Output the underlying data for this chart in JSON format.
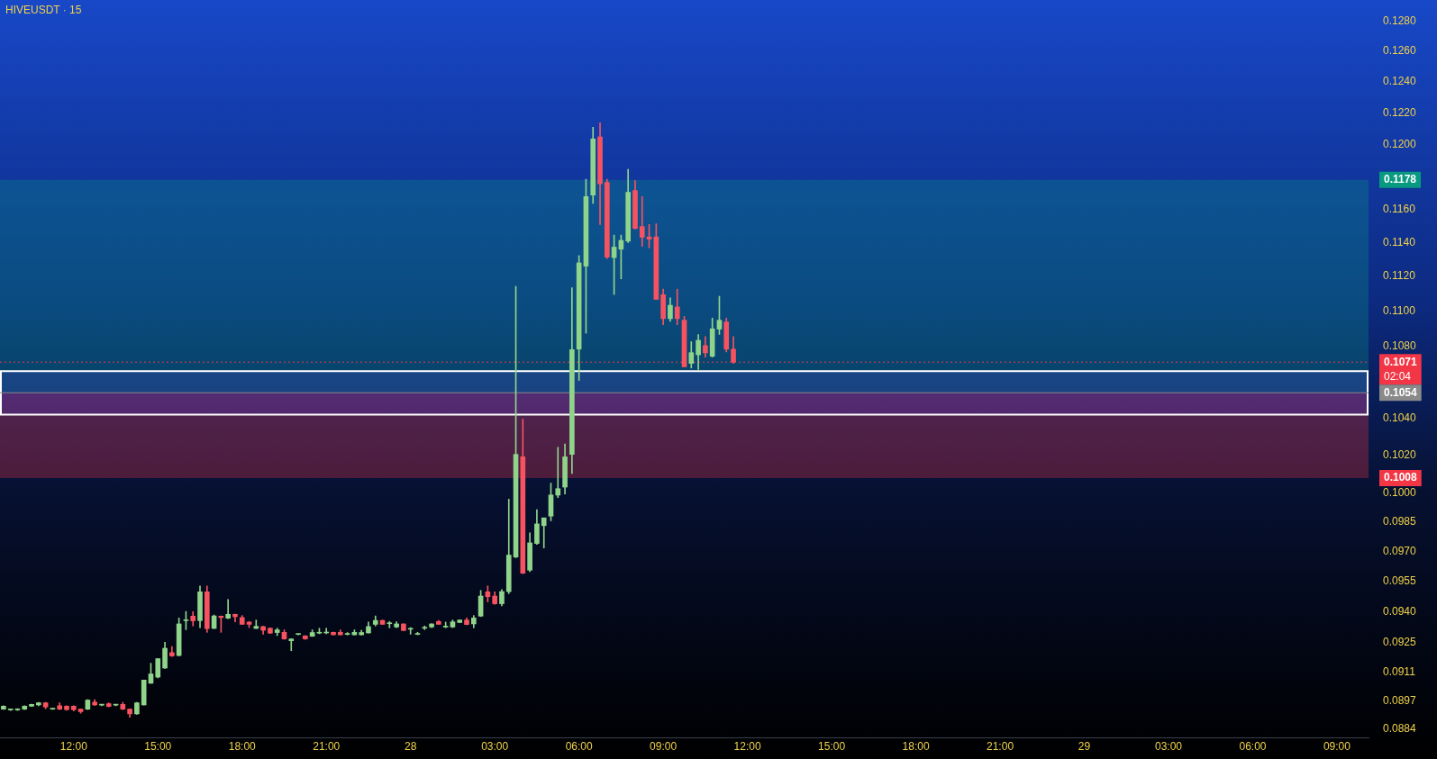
{
  "chart_data": {
    "type": "candlestick",
    "title": "HIVEUSDT · 15",
    "categories": [
      null,
      null,
      null,
      null,
      null,
      null,
      null,
      null,
      null,
      null,
      "12:00",
      null,
      null,
      null,
      null,
      null,
      null,
      null,
      null,
      null,
      null,
      null,
      "15:00",
      null,
      null,
      null,
      null,
      null,
      null,
      null,
      null,
      null,
      null,
      null,
      "18:00",
      null,
      null,
      null,
      null,
      null,
      null,
      null,
      null,
      null,
      null,
      null,
      "21:00",
      null,
      null,
      null,
      null,
      null,
      null,
      null,
      null,
      null,
      null,
      null,
      "28",
      null,
      null,
      null,
      null,
      null,
      null,
      null,
      null,
      null,
      null,
      null,
      "03:00",
      null,
      null,
      null,
      null,
      null,
      null,
      null,
      null,
      null,
      null,
      null,
      "06:00",
      null,
      null,
      null,
      null,
      null,
      null,
      null,
      null,
      null,
      null,
      null,
      "09:00",
      null,
      null,
      null,
      null,
      null,
      null,
      null,
      null,
      null,
      null,
      null,
      "12:00",
      null,
      null,
      null,
      null,
      null,
      null,
      null,
      null,
      null,
      null,
      null,
      "15:00",
      null,
      null,
      null,
      null,
      null,
      null,
      null,
      null,
      null,
      null,
      null,
      "18:00",
      null,
      null,
      null,
      null,
      null,
      null,
      null,
      null,
      null,
      null,
      null,
      "21:00",
      null,
      null,
      null,
      null,
      null,
      null,
      null,
      null,
      null,
      null,
      null,
      "29",
      null,
      null,
      null,
      null,
      null,
      null,
      null,
      null,
      null,
      null,
      null,
      "03:00",
      null,
      null,
      null,
      null,
      null,
      null,
      null,
      null,
      null,
      null,
      null,
      "06:00",
      null,
      null,
      null,
      null,
      null,
      null,
      null,
      null,
      null,
      null,
      null,
      "09:00",
      null,
      null,
      null,
      null
    ],
    "ohlc": [
      [
        0.08934,
        0.0895,
        0.08933,
        0.08948
      ],
      [
        0.08931,
        0.08935,
        0.08928,
        0.08932
      ],
      [
        0.08931,
        0.08936,
        0.08928,
        0.08934
      ],
      [
        0.08934,
        0.0895,
        0.08932,
        0.08948
      ],
      [
        0.08948,
        0.08958,
        0.08947,
        0.08957
      ],
      [
        0.08954,
        0.08966,
        0.0895,
        0.08964
      ],
      [
        0.08964,
        0.08966,
        0.08936,
        0.08944
      ],
      [
        0.08934,
        0.08936,
        0.08933,
        0.08935
      ],
      [
        0.0895,
        0.08964,
        0.08932,
        0.08934
      ],
      [
        0.08948,
        0.0895,
        0.08929,
        0.08932
      ],
      [
        0.08948,
        0.0895,
        0.08926,
        0.08932
      ],
      [
        0.08934,
        0.08935,
        0.08915,
        0.08922
      ],
      [
        0.08934,
        0.08979,
        0.08932,
        0.08977
      ],
      [
        0.08967,
        0.08979,
        0.08951,
        0.08954
      ],
      [
        0.08953,
        0.08957,
        0.0895,
        0.08955
      ],
      [
        0.0896,
        0.08964,
        0.08945,
        0.08947
      ],
      [
        0.08953,
        0.08957,
        0.0895,
        0.08955
      ],
      [
        0.08957,
        0.08966,
        0.08932,
        0.08934
      ],
      [
        0.08934,
        0.08935,
        0.08896,
        0.08912
      ],
      [
        0.08912,
        0.08966,
        0.0891,
        0.08964
      ],
      [
        0.08954,
        0.09071,
        0.08953,
        0.09071
      ],
      [
        0.09056,
        0.09151,
        0.09055,
        0.091
      ],
      [
        0.09085,
        0.09173,
        0.09081,
        0.09173
      ],
      [
        0.09128,
        0.09252,
        0.09126,
        0.09223
      ],
      [
        0.09202,
        0.09231,
        0.09183,
        0.09186
      ],
      [
        0.09188,
        0.0937,
        0.09186,
        0.09341
      ],
      [
        0.09357,
        0.09402,
        0.09313,
        0.0936
      ],
      [
        0.09379,
        0.09401,
        0.09331,
        0.09356
      ],
      [
        0.09357,
        0.09528,
        0.09322,
        0.09499
      ],
      [
        0.09499,
        0.09528,
        0.093,
        0.09318
      ],
      [
        0.09319,
        0.09385,
        0.09318,
        0.0938
      ],
      [
        0.09379,
        0.0938,
        0.093,
        0.09372
      ],
      [
        0.09369,
        0.09461,
        0.09367,
        0.09388
      ],
      [
        0.09388,
        0.09389,
        0.09351,
        0.09376
      ],
      [
        0.09372,
        0.09382,
        0.09338,
        0.09339
      ],
      [
        0.0935,
        0.09353,
        0.09323,
        0.09339
      ],
      [
        0.09319,
        0.0936,
        0.09318,
        0.09329
      ],
      [
        0.09328,
        0.09329,
        0.09291,
        0.0931
      ],
      [
        0.0932,
        0.09322,
        0.09294,
        0.09296
      ],
      [
        0.09299,
        0.0932,
        0.09284,
        0.09312
      ],
      [
        0.093,
        0.09312,
        0.09266,
        0.09268
      ],
      [
        0.09259,
        0.09269,
        0.09211,
        0.09268
      ],
      [
        0.0929,
        0.09292,
        0.09288,
        0.09291
      ],
      [
        0.09283,
        0.09284,
        0.09266,
        0.09268
      ],
      [
        0.09281,
        0.09312,
        0.0928,
        0.09299
      ],
      [
        0.09296,
        0.0932,
        0.09293,
        0.093
      ],
      [
        0.09297,
        0.0932,
        0.09293,
        0.09299
      ],
      [
        0.093,
        0.09301,
        0.09287,
        0.09288
      ],
      [
        0.093,
        0.09312,
        0.09287,
        0.09288
      ],
      [
        0.0929,
        0.09299,
        0.09287,
        0.09291
      ],
      [
        0.09288,
        0.09312,
        0.09287,
        0.093
      ],
      [
        0.09288,
        0.0931,
        0.09287,
        0.09299
      ],
      [
        0.09297,
        0.0935,
        0.09296,
        0.09328
      ],
      [
        0.09339,
        0.0938,
        0.09331,
        0.09358
      ],
      [
        0.09358,
        0.0936,
        0.09338,
        0.09339
      ],
      [
        0.09342,
        0.09353,
        0.09322,
        0.09345
      ],
      [
        0.09326,
        0.09351,
        0.09322,
        0.09341
      ],
      [
        0.09341,
        0.09342,
        0.09307,
        0.09309
      ],
      [
        0.09315,
        0.09323,
        0.09291,
        0.09316
      ],
      [
        0.0929,
        0.093,
        0.09288,
        0.09291
      ],
      [
        0.0932,
        0.09331,
        0.09313,
        0.09322
      ],
      [
        0.09326,
        0.09342,
        0.09323,
        0.09341
      ],
      [
        0.09353,
        0.09358,
        0.09338,
        0.09339
      ],
      [
        0.09326,
        0.0935,
        0.09322,
        0.09328
      ],
      [
        0.09326,
        0.0936,
        0.09323,
        0.09351
      ],
      [
        0.09348,
        0.09361,
        0.09347,
        0.0936
      ],
      [
        0.0936,
        0.0937,
        0.09337,
        0.09338
      ],
      [
        0.09341,
        0.09382,
        0.09322,
        0.0937
      ],
      [
        0.09379,
        0.09506,
        0.09377,
        0.09478
      ],
      [
        0.09499,
        0.09528,
        0.09449,
        0.09475
      ],
      [
        0.09478,
        0.09499,
        0.09437,
        0.0944
      ],
      [
        0.0944,
        0.0951,
        0.0943,
        0.095
      ],
      [
        0.095,
        0.0997,
        0.0949,
        0.09683
      ],
      [
        0.09673,
        0.11142,
        0.0967,
        0.10206
      ],
      [
        0.10193,
        0.10396,
        0.0959,
        0.09592
      ],
      [
        0.09607,
        0.09796,
        0.096,
        0.09745
      ],
      [
        0.09742,
        0.09915,
        0.09737,
        0.09842
      ],
      [
        0.09833,
        0.09873,
        0.09719,
        0.09873
      ],
      [
        0.09882,
        0.10054,
        0.09858,
        0.09992
      ],
      [
        0.09991,
        0.10244,
        0.09978,
        0.10025
      ],
      [
        0.10033,
        0.10262,
        0.09997,
        0.10193
      ],
      [
        0.10206,
        0.11134,
        0.10105,
        0.1078
      ],
      [
        0.10783,
        0.11323,
        0.10608,
        0.1128
      ],
      [
        0.11261,
        0.11784,
        0.10873,
        0.11677
      ],
      [
        0.11686,
        0.12108,
        0.11636,
        0.12034
      ],
      [
        0.12047,
        0.12137,
        0.11508,
        0.11756
      ],
      [
        0.11765,
        0.11784,
        0.11305,
        0.11314
      ],
      [
        0.11311,
        0.11445,
        0.11095,
        0.11373
      ],
      [
        0.11361,
        0.11445,
        0.11186,
        0.11413
      ],
      [
        0.11409,
        0.11845,
        0.114,
        0.11704
      ],
      [
        0.11714,
        0.11775,
        0.11481,
        0.11485
      ],
      [
        0.11496,
        0.11678,
        0.11378,
        0.11432
      ],
      [
        0.11434,
        0.11508,
        0.11369,
        0.11421
      ],
      [
        0.11434,
        0.11513,
        0.11067,
        0.11067
      ],
      [
        0.11094,
        0.11126,
        0.10921,
        0.10956
      ],
      [
        0.10956,
        0.11075,
        0.10941,
        0.11033
      ],
      [
        0.11023,
        0.11126,
        0.10921,
        0.10956
      ],
      [
        0.10947,
        0.10969,
        0.10684,
        0.10684
      ],
      [
        0.10703,
        0.10825,
        0.10677,
        0.10763
      ],
      [
        0.10751,
        0.10865,
        0.10669,
        0.10833
      ],
      [
        0.10803,
        0.10854,
        0.10738,
        0.10762
      ],
      [
        0.10743,
        0.10959,
        0.10738,
        0.10898
      ],
      [
        0.10896,
        0.11085,
        0.10866,
        0.10947
      ],
      [
        0.10937,
        0.10959,
        0.10767,
        0.10783
      ],
      [
        0.10783,
        0.10854,
        0.10703,
        0.1071
      ],
      null,
      null,
      null,
      null,
      null,
      null,
      null,
      null,
      null,
      null,
      null,
      null,
      null,
      null,
      null,
      null,
      null,
      null,
      null,
      null,
      null,
      null,
      null,
      null,
      null,
      null,
      null,
      null,
      null,
      null,
      null,
      null,
      null,
      null,
      null,
      null,
      null,
      null,
      null,
      null,
      null,
      null,
      null,
      null,
      null,
      null,
      null,
      null,
      null,
      null,
      null,
      null,
      null,
      null,
      null,
      null,
      null,
      null,
      null,
      null,
      null,
      null,
      null,
      null,
      null,
      null,
      null,
      null,
      null,
      null,
      null,
      null,
      null,
      null,
      null,
      null,
      null,
      null,
      null,
      null,
      null,
      null,
      null,
      null,
      null,
      null,
      null,
      null,
      null,
      null
    ],
    "colors": [
      "#8fd48a",
      "#8fd48a",
      "#8fd48a",
      "#8fd48a",
      "#8fd48a",
      "#8fd48a",
      "#f7525f",
      "#8fd48a",
      "#f7525f",
      "#f7525f",
      "#f7525f",
      "#f7525f",
      "#8fd48a",
      "#f7525f",
      "#8fd48a",
      "#f7525f",
      "#8fd48a",
      "#f7525f",
      "#f7525f",
      "#8fd48a",
      "#8fd48a",
      "#8fd48a",
      "#8fd48a",
      "#8fd48a",
      "#f7525f",
      "#8fd48a",
      "#8fd48a",
      "#f7525f",
      "#8fd48a",
      "#f7525f",
      "#8fd48a",
      "#f7525f",
      "#8fd48a",
      "#f7525f",
      "#f7525f",
      "#f7525f",
      "#8fd48a",
      "#f7525f",
      "#f7525f",
      "#8fd48a",
      "#f7525f",
      "#8fd48a",
      "#8fd48a",
      "#f7525f",
      "#8fd48a",
      "#8fd48a",
      "#8fd48a",
      "#f7525f",
      "#f7525f",
      "#8fd48a",
      "#8fd48a",
      "#8fd48a",
      "#8fd48a",
      "#8fd48a",
      "#f7525f",
      "#8fd48a",
      "#8fd48a",
      "#f7525f",
      "#8fd48a",
      "#8fd48a",
      "#8fd48a",
      "#8fd48a",
      "#f7525f",
      "#8fd48a",
      "#8fd48a",
      "#8fd48a",
      "#f7525f",
      "#8fd48a",
      "#8fd48a",
      "#f7525f",
      "#f7525f",
      "#8fd48a",
      "#8fd48a",
      "#8fd48a",
      "#f7525f",
      "#8fd48a",
      "#8fd48a",
      "#8fd48a",
      "#8fd48a",
      "#8fd48a",
      "#8fd48a",
      "#8fd48a",
      "#8fd48a",
      "#8fd48a",
      "#8fd48a",
      "#f7525f",
      "#f7525f",
      "#8fd48a",
      "#8fd48a",
      "#8fd48a",
      "#f7525f",
      "#f7525f",
      "#f7525f",
      "#f7525f",
      "#f7525f",
      "#8fd48a",
      "#f7525f",
      "#f7525f",
      "#8fd48a",
      "#8fd48a",
      "#f7525f",
      "#8fd48a",
      "#8fd48a",
      "#f7525f",
      "#f7525f",
      null,
      null,
      null,
      null,
      null,
      null,
      null,
      null,
      null,
      null,
      null,
      null,
      null,
      null,
      null,
      null,
      null,
      null,
      null,
      null,
      null,
      null,
      null,
      null,
      null,
      null,
      null,
      null,
      null,
      null,
      null,
      null,
      null,
      null,
      null,
      null,
      null,
      null,
      null,
      null,
      null,
      null,
      null,
      null,
      null,
      null,
      null,
      null,
      null,
      null,
      null,
      null,
      null,
      null,
      null,
      null,
      null,
      null,
      null,
      null,
      null,
      null,
      null,
      null,
      null,
      null,
      null,
      null,
      null,
      null,
      null,
      null,
      null,
      null,
      null,
      null,
      null,
      null,
      null,
      null,
      null,
      null,
      null,
      null,
      null,
      null,
      null,
      null,
      null,
      null
    ],
    "log": true,
    "ylim": [
      0.0884,
      0.128
    ],
    "yticks": [
      {
        "value": 0.128,
        "label": "0.1280"
      },
      {
        "value": 0.126,
        "label": "0.1260"
      },
      {
        "value": 0.124,
        "label": "0.1240"
      },
      {
        "value": 0.122,
        "label": "0.1220"
      },
      {
        "value": 0.12,
        "label": "0.1200"
      },
      {
        "value": 0.116,
        "label": "0.1160"
      },
      {
        "value": 0.114,
        "label": "0.1140"
      },
      {
        "value": 0.112,
        "label": "0.1120"
      },
      {
        "value": 0.11,
        "label": "0.1100"
      },
      {
        "value": 0.108,
        "label": "0.1080"
      },
      {
        "value": 0.104,
        "label": "0.1040"
      },
      {
        "value": 0.102,
        "label": "0.1020"
      },
      {
        "value": 0.1,
        "label": "0.1000"
      },
      0.0985,
      {
        "value": 0.097,
        "label": "0.0970"
      },
      0.0955,
      {
        "value": 0.094,
        "label": "0.0940"
      },
      0.0925,
      0.0911,
      0.0897,
      0.0884
    ],
    "bands": [
      {
        "axis": "y",
        "from": 0.1054,
        "to": 0.1178,
        "label": "0.1178",
        "color": "#089981"
      },
      {
        "axis": "y",
        "from": 0.1054,
        "to": 0.1008,
        "label": "0.1008",
        "color": "#f23645"
      },
      {
        "axis": "y",
        "from": 0.1042,
        "to": 0.1066,
        "color": "#6a4cff"
      }
    ],
    "ref_lines": [
      {
        "axis": "y",
        "value": 0.1071,
        "label": "0.1071",
        "color": "#f23645",
        "line_style": "dotted"
      },
      {
        "axis": "y",
        "value": 0.1054,
        "label": "0.1054",
        "color": "#8a8a8a",
        "line_style": "solid"
      }
    ],
    "annotations": [
      "02:04"
    ]
  }
}
